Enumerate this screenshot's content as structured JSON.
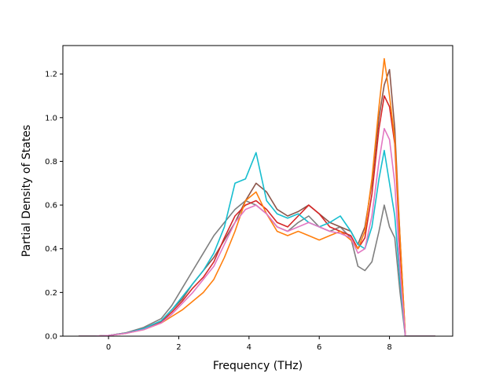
{
  "chart_data": {
    "type": "line",
    "xlabel": "Frequency (THz)",
    "ylabel": "Partial Density of States",
    "xlim": [
      -1.3,
      9.8
    ],
    "ylim": [
      0.0,
      1.33
    ],
    "xticks": [
      0,
      2,
      4,
      6,
      8
    ],
    "xtick_labels": [
      "0",
      "2",
      "4",
      "6",
      "8"
    ],
    "yticks": [
      0.0,
      0.2,
      0.4,
      0.6,
      0.8,
      1.0,
      1.2
    ],
    "ytick_labels": [
      "0.0",
      "0.2",
      "0.4",
      "0.6",
      "0.8",
      "1.0",
      "1.2"
    ],
    "grid": false,
    "series": [
      {
        "color": "#7f7f7f",
        "x": [
          -0.85,
          -0.4,
          0.0,
          0.5,
          1.0,
          1.5,
          1.8,
          2.1,
          2.4,
          2.7,
          3.0,
          3.3,
          3.6,
          3.9,
          4.2,
          4.5,
          4.8,
          5.1,
          5.4,
          5.7,
          6.0,
          6.3,
          6.6,
          6.9,
          7.1,
          7.3,
          7.5,
          7.7,
          7.85,
          8.0,
          8.15,
          8.3,
          8.45,
          8.9,
          9.3
        ],
        "y": [
          0.0,
          0.0,
          0.003,
          0.015,
          0.04,
          0.08,
          0.14,
          0.22,
          0.3,
          0.38,
          0.46,
          0.52,
          0.58,
          0.62,
          0.6,
          0.56,
          0.5,
          0.48,
          0.52,
          0.55,
          0.5,
          0.48,
          0.5,
          0.45,
          0.32,
          0.3,
          0.34,
          0.48,
          0.6,
          0.5,
          0.45,
          0.2,
          0.0,
          0.0,
          0.0
        ]
      },
      {
        "color": "#8c564b",
        "x": [
          -0.85,
          -0.4,
          0.0,
          0.5,
          1.0,
          1.5,
          1.8,
          2.1,
          2.4,
          2.7,
          3.0,
          3.3,
          3.6,
          3.9,
          4.2,
          4.5,
          4.8,
          5.1,
          5.4,
          5.7,
          6.0,
          6.3,
          6.6,
          6.9,
          7.1,
          7.3,
          7.5,
          7.7,
          7.85,
          8.0,
          8.15,
          8.3,
          8.45,
          8.9,
          9.3
        ],
        "y": [
          0.0,
          0.0,
          0.003,
          0.015,
          0.035,
          0.07,
          0.12,
          0.17,
          0.24,
          0.3,
          0.36,
          0.44,
          0.52,
          0.62,
          0.7,
          0.66,
          0.58,
          0.55,
          0.57,
          0.6,
          0.56,
          0.52,
          0.5,
          0.48,
          0.42,
          0.5,
          0.7,
          1.0,
          1.15,
          1.22,
          0.95,
          0.45,
          0.0,
          0.0,
          0.0
        ]
      },
      {
        "color": "#d62728",
        "x": [
          -0.85,
          -0.4,
          0.0,
          0.5,
          1.0,
          1.5,
          1.8,
          2.1,
          2.4,
          2.7,
          3.0,
          3.3,
          3.6,
          3.9,
          4.2,
          4.5,
          4.8,
          5.1,
          5.4,
          5.7,
          6.0,
          6.3,
          6.6,
          6.9,
          7.1,
          7.3,
          7.5,
          7.7,
          7.85,
          8.0,
          8.15,
          8.3,
          8.45,
          8.9,
          9.3
        ],
        "y": [
          0.0,
          0.0,
          0.003,
          0.014,
          0.035,
          0.065,
          0.11,
          0.16,
          0.22,
          0.27,
          0.34,
          0.45,
          0.55,
          0.6,
          0.62,
          0.58,
          0.52,
          0.5,
          0.55,
          0.6,
          0.56,
          0.5,
          0.48,
          0.46,
          0.4,
          0.45,
          0.65,
          0.95,
          1.1,
          1.05,
          0.88,
          0.4,
          0.0,
          0.0,
          0.0
        ]
      },
      {
        "color": "#ff7f0e",
        "x": [
          -0.85,
          -0.4,
          0.0,
          0.5,
          1.0,
          1.5,
          1.8,
          2.1,
          2.4,
          2.7,
          3.0,
          3.3,
          3.6,
          3.9,
          4.2,
          4.5,
          4.8,
          5.1,
          5.4,
          5.7,
          6.0,
          6.3,
          6.6,
          6.9,
          7.1,
          7.3,
          7.5,
          7.7,
          7.85,
          8.0,
          8.15,
          8.3,
          8.45,
          8.9,
          9.3
        ],
        "y": [
          0.0,
          0.0,
          0.003,
          0.013,
          0.03,
          0.06,
          0.09,
          0.12,
          0.16,
          0.2,
          0.26,
          0.36,
          0.48,
          0.62,
          0.66,
          0.56,
          0.48,
          0.46,
          0.48,
          0.46,
          0.44,
          0.46,
          0.48,
          0.44,
          0.4,
          0.48,
          0.72,
          1.05,
          1.27,
          1.1,
          0.9,
          0.45,
          0.0,
          0.0,
          0.0
        ]
      },
      {
        "color": "#17becf",
        "x": [
          -0.85,
          -0.4,
          0.0,
          0.5,
          1.0,
          1.5,
          1.8,
          2.1,
          2.4,
          2.7,
          3.0,
          3.3,
          3.6,
          3.9,
          4.2,
          4.5,
          4.8,
          5.1,
          5.4,
          5.7,
          6.0,
          6.3,
          6.6,
          6.9,
          7.1,
          7.3,
          7.5,
          7.7,
          7.85,
          8.0,
          8.15,
          8.3,
          8.45,
          8.9,
          9.3
        ],
        "y": [
          0.0,
          0.0,
          0.003,
          0.014,
          0.035,
          0.07,
          0.12,
          0.18,
          0.24,
          0.3,
          0.38,
          0.5,
          0.7,
          0.72,
          0.84,
          0.62,
          0.56,
          0.54,
          0.56,
          0.52,
          0.5,
          0.52,
          0.55,
          0.48,
          0.42,
          0.4,
          0.5,
          0.72,
          0.85,
          0.7,
          0.55,
          0.25,
          0.0,
          0.0,
          0.0
        ]
      },
      {
        "color": "#e377c2",
        "x": [
          -0.85,
          -0.4,
          0.0,
          0.5,
          1.0,
          1.5,
          1.8,
          2.1,
          2.4,
          2.7,
          3.0,
          3.3,
          3.6,
          3.9,
          4.2,
          4.5,
          4.8,
          5.1,
          5.4,
          5.7,
          6.0,
          6.3,
          6.6,
          6.9,
          7.1,
          7.3,
          7.5,
          7.7,
          7.85,
          8.0,
          8.15,
          8.3,
          8.45,
          8.9,
          9.3
        ],
        "y": [
          0.0,
          0.0,
          0.003,
          0.013,
          0.03,
          0.06,
          0.1,
          0.15,
          0.2,
          0.26,
          0.32,
          0.42,
          0.52,
          0.58,
          0.6,
          0.56,
          0.5,
          0.48,
          0.5,
          0.52,
          0.5,
          0.48,
          0.47,
          0.45,
          0.38,
          0.4,
          0.55,
          0.8,
          0.95,
          0.9,
          0.7,
          0.3,
          0.0,
          0.0,
          0.0
        ]
      }
    ]
  }
}
